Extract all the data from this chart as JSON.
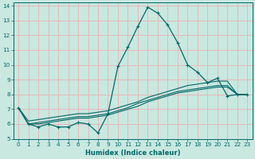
{
  "xlabel": "Humidex (Indice chaleur)",
  "ylabel": "",
  "bg_color": "#c8e8e0",
  "grid_color": "#e8b8b8",
  "line_color": "#006868",
  "xlim": [
    -0.5,
    23.5
  ],
  "ylim": [
    5,
    14.2
  ],
  "xticks": [
    0,
    1,
    2,
    3,
    4,
    5,
    6,
    7,
    8,
    9,
    10,
    11,
    12,
    13,
    14,
    15,
    16,
    17,
    18,
    19,
    20,
    21,
    22,
    23
  ],
  "yticks": [
    5,
    6,
    7,
    8,
    9,
    10,
    11,
    12,
    13,
    14
  ],
  "series": [
    [
      7.1,
      6.0,
      5.8,
      6.0,
      5.8,
      5.8,
      6.1,
      6.0,
      5.4,
      6.7,
      9.9,
      11.2,
      12.6,
      13.9,
      13.5,
      12.7,
      11.5,
      10.0,
      9.5,
      8.8,
      9.1,
      7.9,
      8.0,
      8.0
    ],
    [
      7.1,
      6.2,
      6.3,
      6.4,
      6.5,
      6.6,
      6.7,
      6.7,
      6.8,
      6.9,
      7.1,
      7.3,
      7.5,
      7.8,
      8.0,
      8.2,
      8.4,
      8.6,
      8.7,
      8.8,
      8.9,
      8.9,
      8.0,
      8.0
    ],
    [
      7.1,
      6.0,
      6.1,
      6.2,
      6.3,
      6.4,
      6.5,
      6.5,
      6.6,
      6.7,
      6.9,
      7.1,
      7.4,
      7.6,
      7.8,
      8.0,
      8.2,
      8.3,
      8.4,
      8.5,
      8.6,
      8.6,
      8.0,
      8.0
    ],
    [
      7.1,
      6.0,
      6.0,
      6.1,
      6.2,
      6.3,
      6.4,
      6.4,
      6.5,
      6.6,
      6.8,
      7.0,
      7.2,
      7.5,
      7.7,
      7.9,
      8.1,
      8.2,
      8.3,
      8.4,
      8.5,
      8.5,
      8.0,
      8.0
    ]
  ],
  "marker_series": 0,
  "xlabel_fontsize": 6.0,
  "tick_fontsize": 5.2
}
